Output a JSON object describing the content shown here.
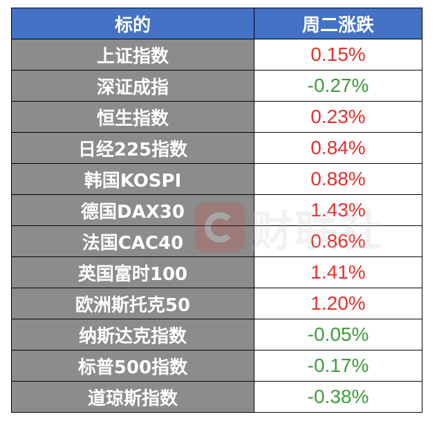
{
  "table": {
    "headers": {
      "name": "标的",
      "change": "周二涨跌"
    },
    "rows": [
      {
        "name": "上证指数",
        "change": "0.15%",
        "direction": "up"
      },
      {
        "name": "深证成指",
        "change": "-0.27%",
        "direction": "down"
      },
      {
        "name": "恒生指数",
        "change": "0.23%",
        "direction": "up"
      },
      {
        "name": "日经225指数",
        "change": "0.84%",
        "direction": "up"
      },
      {
        "name": "韩国KOSPI",
        "change": "0.88%",
        "direction": "up"
      },
      {
        "name": "德国DAX30",
        "change": "1.43%",
        "direction": "up"
      },
      {
        "name": "法国CAC40",
        "change": "0.86%",
        "direction": "up"
      },
      {
        "name": "英国富时100",
        "change": "1.41%",
        "direction": "up"
      },
      {
        "name": "欧洲斯托克50",
        "change": "1.20%",
        "direction": "up"
      },
      {
        "name": "纳斯达克指数",
        "change": "-0.05%",
        "direction": "down"
      },
      {
        "name": "标普500指数",
        "change": "-0.17%",
        "direction": "down"
      },
      {
        "name": "道琼斯指数",
        "change": "-0.38%",
        "direction": "down"
      }
    ]
  },
  "colors": {
    "header_bg": "#4472c4",
    "name_cell_bg": "#8c8c8c",
    "up": "#e0312a",
    "down": "#3d9b3a"
  },
  "watermark": {
    "logo_icon": "cls-logo-icon",
    "text": "财联社"
  }
}
